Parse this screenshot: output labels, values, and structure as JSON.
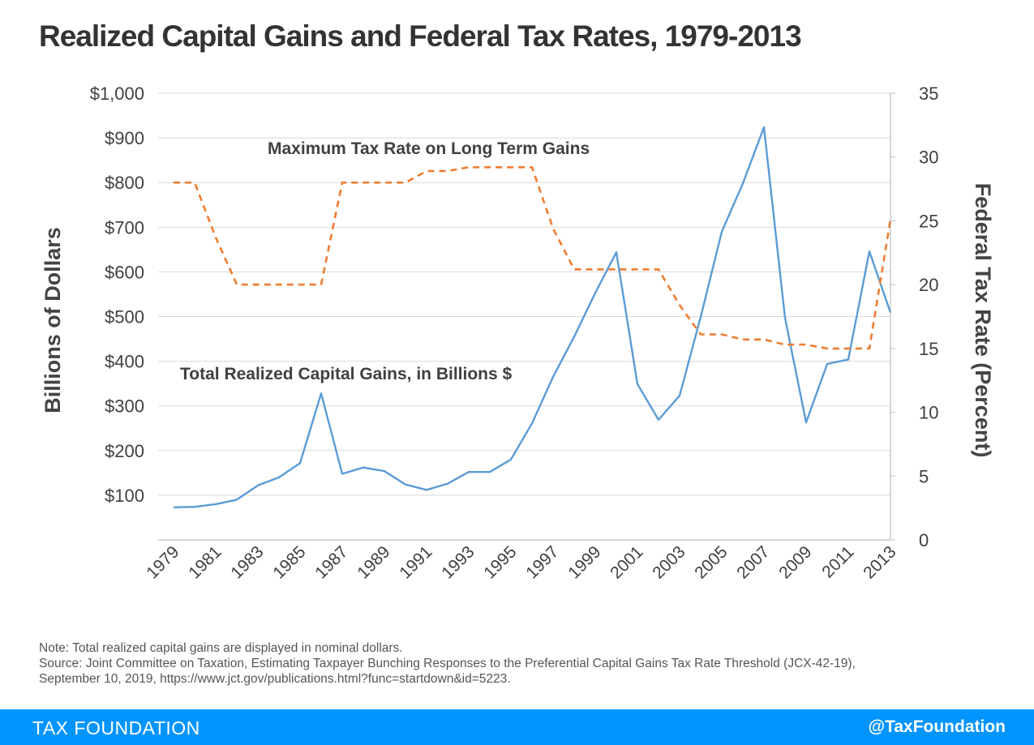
{
  "title": "Realized Capital Gains and Federal Tax Rates, 1979-2013",
  "chart_data": {
    "type": "line",
    "x": [
      1979,
      1980,
      1981,
      1982,
      1983,
      1984,
      1985,
      1986,
      1987,
      1988,
      1989,
      1990,
      1991,
      1992,
      1993,
      1994,
      1995,
      1996,
      1997,
      1998,
      1999,
      2000,
      2001,
      2002,
      2003,
      2004,
      2005,
      2006,
      2007,
      2008,
      2009,
      2010,
      2011,
      2012,
      2013
    ],
    "x_tick_labels": [
      "1979",
      "1981",
      "1983",
      "1985",
      "1987",
      "1989",
      "1991",
      "1993",
      "1995",
      "1997",
      "1999",
      "2001",
      "2003",
      "2005",
      "2007",
      "2009",
      "2011",
      "2013"
    ],
    "y_left": {
      "label": "Billions of Dollars",
      "range": [
        0,
        1000
      ],
      "tick_labels": [
        "$100",
        "$200",
        "$300",
        "$400",
        "$500",
        "$600",
        "$700",
        "$800",
        "$900",
        "$1,000"
      ],
      "tick_values": [
        100,
        200,
        300,
        400,
        500,
        600,
        700,
        800,
        900,
        1000
      ]
    },
    "y_right": {
      "label": "Federal Tax Rate (Percent)",
      "range": [
        0,
        35
      ],
      "tick_labels": [
        "0",
        "5",
        "10",
        "15",
        "20",
        "25",
        "30",
        "35"
      ],
      "tick_values": [
        0,
        5,
        10,
        15,
        20,
        25,
        30,
        35
      ]
    },
    "grid": true,
    "series": [
      {
        "name": "Total Realized Capital Gains, in Billions $",
        "axis": "left",
        "style": "solid",
        "color": "#5b9bd5",
        "values": [
          73,
          74,
          80,
          90,
          122,
          140,
          172,
          328,
          148,
          162,
          154,
          124,
          112,
          126,
          152,
          152,
          180,
          261,
          365,
          455,
          553,
          644,
          349,
          269,
          323,
          499,
          690,
          798,
          924,
          497,
          263,
          394,
          404,
          646,
          509
        ]
      },
      {
        "name": "Maximum Tax Rate on Long Term Gains",
        "axis": "right",
        "style": "dashed",
        "color": "#ed7d31",
        "values": [
          28,
          28,
          23.7,
          20,
          20,
          20,
          20,
          20,
          28,
          28,
          28,
          28,
          28.9,
          28.9,
          29.2,
          29.2,
          29.2,
          29.2,
          24.4,
          21.2,
          21.2,
          21.2,
          21.2,
          21.2,
          18.4,
          16.1,
          16.1,
          15.7,
          15.7,
          15.3,
          15.3,
          15,
          15,
          15,
          25.1
        ]
      }
    ]
  },
  "notes": {
    "note": "Note: Total realized capital gains are displayed in nominal dollars.",
    "source_line1": "Source: Joint Committee on Taxation, Estimating Taxpayer Bunching Responses to the Preferential Capital Gains Tax Rate Threshold (JCX-42-19),",
    "source_line2": "September 10, 2019, https://www.jct.gov/publications.html?func=startdown&id=5223."
  },
  "footer": {
    "brand": "TAX FOUNDATION",
    "handle": "@TaxFoundation"
  },
  "colors": {
    "footer_bg": "#0094ff",
    "gains_line": "#5b9bd5",
    "rate_line": "#ed7d31",
    "gridline": "#d9d9d9",
    "text": "#333333"
  }
}
